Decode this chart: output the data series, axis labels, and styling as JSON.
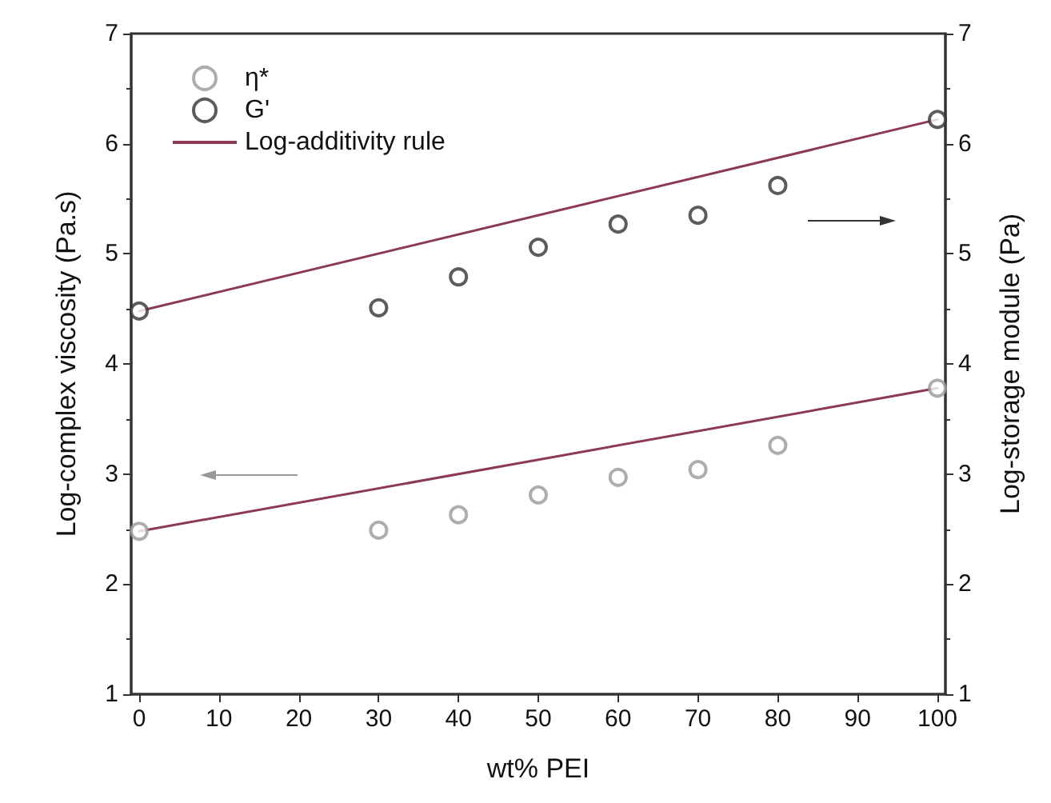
{
  "chart_data": {
    "type": "scatter",
    "xlabel": "wt% PEI",
    "ylabel": "Log-complex viscosity (Pa.s)",
    "y2label": "Log-storage module (Pa)",
    "xlim": [
      -1,
      101
    ],
    "xticks": [
      0,
      10,
      20,
      30,
      40,
      50,
      60,
      70,
      80,
      90,
      100
    ],
    "ylim": [
      1,
      7
    ],
    "yticks": [
      1,
      2,
      3,
      4,
      5,
      6,
      7
    ],
    "y2lim": [
      1,
      7
    ],
    "y2ticks": [
      1,
      2,
      3,
      4,
      5,
      6,
      7
    ],
    "grid": false,
    "legend": "top left",
    "marker": "circle",
    "series": [
      {
        "name": "η*",
        "color": "#999999",
        "x": [
          0,
          30,
          40,
          50,
          60,
          70,
          80,
          100
        ],
        "values": [
          2.48,
          2.49,
          2.63,
          2.81,
          2.97,
          3.04,
          3.26,
          3.78
        ]
      },
      {
        "name": "G'",
        "color": "#333333",
        "axis": "y2",
        "x": [
          0,
          30,
          40,
          50,
          60,
          70,
          80,
          100
        ],
        "values": [
          4.48,
          4.51,
          4.79,
          5.06,
          5.27,
          5.35,
          5.62,
          6.22
        ]
      },
      {
        "name": "Log-additivity rule",
        "type": "line",
        "color": "#8b3a52",
        "marker": "none",
        "line_style": "solid",
        "x": [
          0,
          100
        ],
        "values": [
          2.48,
          3.78
        ]
      },
      {
        "type": "line",
        "color": "#8b3a52",
        "marker": "none",
        "line_style": "solid",
        "axis": "y2",
        "x": [
          0,
          100
        ],
        "values": [
          4.48,
          6.22
        ]
      }
    ]
  }
}
